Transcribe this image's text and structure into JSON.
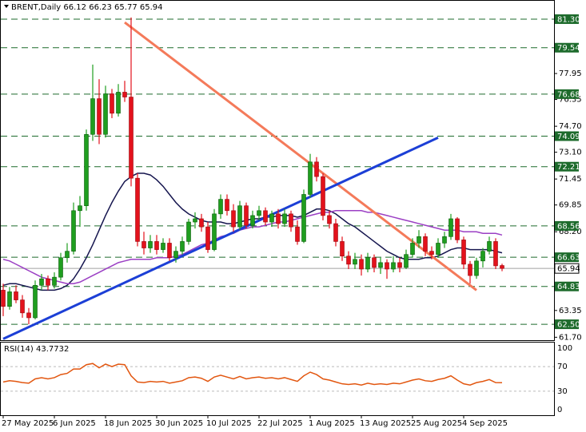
{
  "chart_data": {
    "type": "candlestick",
    "symbol": "BRENT,Daily",
    "categories": [
      "27 May 2025",
      null,
      null,
      null,
      null,
      null,
      null,
      null,
      "6 Jun 2025",
      null,
      null,
      null,
      null,
      null,
      null,
      null,
      "18 Jun 2025",
      null,
      null,
      null,
      null,
      null,
      null,
      null,
      "30 Jun 2025",
      null,
      null,
      null,
      null,
      null,
      null,
      null,
      "10 Jul 2025",
      null,
      null,
      null,
      null,
      null,
      null,
      null,
      "22 Jul 2025",
      null,
      null,
      null,
      null,
      null,
      null,
      null,
      "1 Aug 2025",
      null,
      null,
      null,
      null,
      null,
      null,
      null,
      "13 Aug 2025",
      null,
      null,
      null,
      null,
      null,
      null,
      null,
      "25 Aug 2025",
      null,
      null,
      null,
      null,
      null,
      null,
      null,
      "4 Sep 2025",
      null,
      null,
      null,
      null,
      null,
      null
    ],
    "open": [
      64.6,
      63.6,
      64.5,
      64.0,
      63.2,
      62.9,
      64.9,
      65.3,
      64.9,
      65.4,
      66.6,
      67.0,
      69.5,
      69.8,
      74.2,
      76.4,
      74.2,
      76.7,
      75.5,
      76.8,
      76.5,
      71.5,
      67.6,
      67.2,
      67.6,
      67.1,
      67.5,
      66.6,
      67.0,
      67.6,
      68.8,
      69.0,
      68.5,
      67.1,
      69.3,
      70.2,
      69.5,
      68.5,
      69.8,
      68.6,
      69.2,
      69.5,
      68.8,
      69.3,
      68.7,
      69.3,
      68.5,
      67.6,
      70.5,
      72.5,
      71.6,
      69.2,
      68.7,
      67.6,
      66.7,
      66.2,
      66.5,
      65.9,
      66.6,
      66.0,
      66.3,
      65.9,
      66.3,
      66.0,
      66.8,
      67.5,
      67.9,
      67.0,
      66.8,
      67.5,
      67.9,
      69.0,
      67.7,
      66.2,
      65.5,
      66.4,
      67.0,
      67.6,
      66.12
    ],
    "high": [
      65.0,
      64.8,
      64.9,
      64.3,
      63.5,
      65.2,
      65.6,
      65.5,
      65.7,
      66.9,
      67.5,
      70.0,
      70.4,
      74.5,
      78.5,
      77.6,
      77.2,
      77.0,
      77.3,
      77.5,
      81.4,
      71.8,
      68.2,
      68.0,
      68.0,
      67.8,
      67.8,
      67.3,
      67.9,
      69.0,
      69.4,
      69.3,
      68.8,
      69.6,
      70.5,
      70.5,
      69.9,
      70.1,
      70.0,
      69.5,
      69.8,
      69.7,
      69.5,
      69.6,
      69.6,
      69.5,
      68.9,
      70.8,
      73.0,
      72.8,
      71.8,
      69.5,
      69.0,
      67.9,
      67.0,
      66.9,
      66.8,
      66.9,
      66.8,
      66.6,
      66.5,
      66.7,
      66.6,
      67.1,
      67.8,
      68.3,
      68.1,
      67.3,
      67.8,
      68.2,
      69.3,
      69.1,
      67.9,
      66.4,
      66.6,
      67.2,
      67.9,
      67.8,
      66.23
    ],
    "low": [
      63.0,
      63.4,
      63.8,
      62.9,
      62.5,
      62.8,
      64.6,
      64.6,
      64.7,
      65.2,
      66.3,
      66.8,
      68.5,
      69.5,
      73.8,
      73.6,
      74.0,
      75.2,
      75.3,
      76.2,
      71.0,
      67.3,
      66.8,
      66.9,
      66.8,
      66.9,
      66.4,
      66.3,
      66.8,
      67.4,
      68.4,
      68.2,
      66.9,
      67.0,
      69.0,
      69.2,
      68.2,
      68.3,
      68.4,
      68.4,
      68.9,
      68.6,
      68.5,
      68.4,
      68.5,
      68.2,
      67.4,
      67.5,
      70.3,
      71.3,
      68.9,
      68.4,
      67.3,
      66.4,
      65.9,
      65.9,
      65.5,
      65.7,
      65.7,
      65.6,
      65.3,
      65.7,
      65.7,
      65.9,
      66.6,
      67.2,
      66.7,
      66.5,
      66.6,
      67.2,
      67.7,
      67.5,
      65.9,
      65.0,
      65.3,
      66.0,
      66.8,
      65.9,
      65.77
    ],
    "close": [
      63.6,
      64.5,
      64.0,
      63.2,
      62.9,
      64.9,
      65.3,
      64.9,
      65.4,
      66.6,
      67.0,
      69.5,
      69.8,
      74.2,
      76.4,
      74.2,
      76.7,
      75.5,
      76.8,
      76.5,
      71.5,
      67.6,
      67.2,
      67.6,
      67.1,
      67.5,
      66.6,
      67.0,
      67.6,
      68.8,
      69.0,
      68.5,
      67.1,
      69.3,
      70.2,
      69.5,
      68.5,
      69.8,
      68.6,
      69.2,
      69.5,
      68.8,
      69.3,
      68.7,
      69.3,
      68.5,
      67.6,
      70.5,
      72.5,
      71.6,
      69.2,
      68.7,
      67.6,
      66.7,
      66.2,
      66.5,
      65.9,
      66.6,
      66.0,
      66.3,
      65.9,
      66.3,
      66.0,
      66.8,
      67.5,
      67.9,
      67.0,
      66.8,
      67.5,
      67.9,
      69.0,
      67.7,
      66.2,
      65.5,
      66.4,
      67.0,
      67.6,
      66.1,
      65.94
    ],
    "up_color": "#1f9e1f",
    "down_color": "#e3121c",
    "ylim": [
      61.52,
      82.43
    ],
    "yticks": [
      77.95,
      76.35,
      {
        "value": 74.7,
        "label": "74.70"
      },
      {
        "value": 73.1,
        "label": "73.10"
      },
      71.45,
      69.85,
      {
        "value": 68.2,
        "label": "68.20"
      },
      63.35,
      {
        "value": 61.7,
        "label": "61.70"
      }
    ],
    "levels": [
      {
        "value": 81.3,
        "label": "81.30"
      },
      79.54,
      76.68,
      74.09,
      72.21,
      68.56,
      66.63,
      64.83,
      {
        "value": 62.5,
        "label": "62.50"
      }
    ],
    "level_color": "#1d6b2c",
    "series": [
      {
        "color": "#16164f",
        "values": [
          64.9,
          65.0,
          65.0,
          64.9,
          64.8,
          64.7,
          64.6,
          64.6,
          64.6,
          64.7,
          64.9,
          65.3,
          65.9,
          66.6,
          67.4,
          68.3,
          69.2,
          70.0,
          70.7,
          71.3,
          71.6,
          71.8,
          71.8,
          71.7,
          71.4,
          71.0,
          70.5,
          70.0,
          69.6,
          69.3,
          69.1,
          68.9,
          68.8,
          68.8,
          68.8,
          68.7,
          68.7,
          68.8,
          68.9,
          69.0,
          69.0,
          69.1,
          69.1,
          69.2,
          69.2,
          69.2,
          69.1,
          69.2,
          69.4,
          69.6,
          69.6,
          69.5,
          69.3,
          69.0,
          68.7,
          68.5,
          68.2,
          67.9,
          67.6,
          67.3,
          67.0,
          66.8,
          66.6,
          66.5,
          66.5,
          66.5,
          66.6,
          66.6,
          66.7,
          66.9,
          67.1,
          67.2,
          67.2,
          67.1,
          67.1,
          67.1,
          67.1,
          67.0,
          66.9
        ]
      },
      {
        "color": "#9b3fc4",
        "values": [
          66.5,
          66.4,
          66.2,
          66.0,
          65.8,
          65.6,
          65.4,
          65.3,
          65.2,
          65.1,
          65.0,
          65.0,
          65.1,
          65.3,
          65.5,
          65.7,
          65.9,
          66.1,
          66.3,
          66.4,
          66.5,
          66.5,
          66.5,
          66.5,
          66.6,
          66.6,
          66.6,
          66.7,
          66.8,
          67.0,
          67.2,
          67.4,
          67.5,
          67.7,
          67.9,
          68.0,
          68.1,
          68.3,
          68.4,
          68.5,
          68.5,
          68.6,
          68.7,
          68.8,
          68.8,
          68.9,
          69.0,
          69.1,
          69.2,
          69.3,
          69.4,
          69.4,
          69.5,
          69.5,
          69.5,
          69.5,
          69.5,
          69.4,
          69.4,
          69.3,
          69.2,
          69.1,
          69.0,
          68.9,
          68.8,
          68.7,
          68.6,
          68.5,
          68.4,
          68.3,
          68.3,
          68.3,
          68.2,
          68.2,
          68.2,
          68.1,
          68.1,
          68.1,
          68.0
        ]
      }
    ],
    "trendlines": [
      {
        "color": "#f47a5a",
        "x": [
          19,
          74
        ],
        "values": [
          81.1,
          64.6
        ]
      },
      {
        "color": "#1c3fd6",
        "x": [
          0,
          68
        ],
        "values": [
          61.6,
          74.0
        ]
      }
    ],
    "rsi": {
      "label": "RSI(14)",
      "color": "#e2560f",
      "ylim": [
        -9,
        109
      ],
      "yticks": [
        100,
        70,
        30,
        0
      ],
      "values": [
        45,
        47,
        46,
        44,
        43,
        50,
        52,
        50,
        52,
        57,
        59,
        66,
        66,
        73,
        75,
        68,
        74,
        70,
        74,
        73,
        55,
        45,
        44,
        46,
        45,
        46,
        43,
        45,
        47,
        52,
        53,
        51,
        46,
        53,
        56,
        53,
        50,
        54,
        50,
        52,
        53,
        51,
        52,
        50,
        52,
        49,
        46,
        55,
        61,
        57,
        50,
        48,
        45,
        42,
        41,
        42,
        40,
        43,
        41,
        42,
        41,
        43,
        42,
        45,
        48,
        50,
        47,
        46,
        49,
        51,
        55,
        48,
        42,
        40,
        44,
        46,
        49,
        44,
        43.7732
      ]
    }
  }
}
